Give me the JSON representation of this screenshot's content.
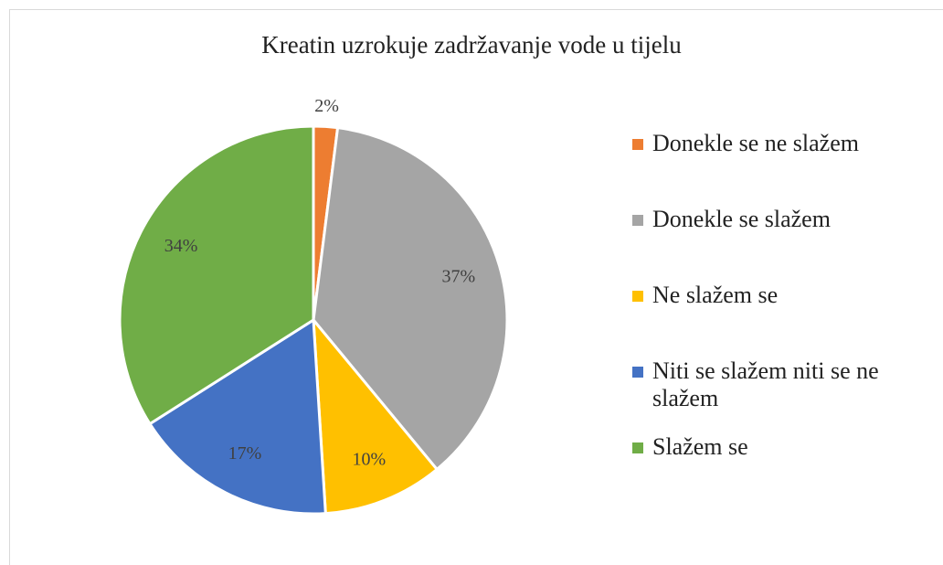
{
  "chart_data": {
    "type": "pie",
    "title": "Kreatin uzrokuje zadržavanje vode u tijelu",
    "categories": [
      "Donekle se ne slažem",
      "Donekle se slažem",
      "Ne slažem se",
      "Niti se slažem niti se ne slažem",
      "Slažem se"
    ],
    "values": [
      2,
      37,
      10,
      17,
      34
    ],
    "value_labels": [
      "2%",
      "37%",
      "10%",
      "17%",
      "34%"
    ],
    "colors": [
      "#ED7D31",
      "#A5A5A5",
      "#FFC000",
      "#4472C4",
      "#70AD47"
    ],
    "legend": "right"
  }
}
